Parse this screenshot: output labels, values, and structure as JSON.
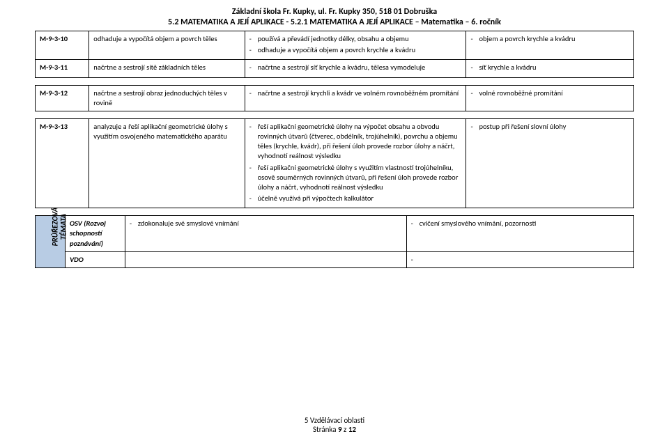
{
  "header": {
    "line1": "Základní škola Fr. Kupky, ul. Fr. Kupky 350, 518 01 Dobruška",
    "line2": "5.2 MATEMATIKA A JEJÍ APLIKACE - 5.2.1 MATEMATIKA A JEJÍ APLIKACE – Matematika – 6. ročník"
  },
  "tableA": {
    "rows": [
      {
        "code": "M-9-3-10",
        "col2": "odhaduje a vypočítá objem a povrch těles",
        "col3": [
          "používá a převádí jednotky délky, obsahu a objemu",
          "odhaduje a vypočítá objem a povrch krychle a kvádru"
        ],
        "col4": [
          "objem a povrch krychle a kvádru"
        ]
      },
      {
        "code": "M-9-3-11",
        "col2": "načrtne a sestrojí sítě základních těles",
        "col3": [
          "načrtne a sestrojí síť krychle a kvádru, tělesa vymodeluje"
        ],
        "col4": [
          "síť krychle a kvádru"
        ]
      }
    ],
    "cols": {
      "c1": "9%",
      "c2": "26%",
      "c3": "37%",
      "c4": "28%"
    }
  },
  "tableB": {
    "rows": [
      {
        "code": "M-9-3-12",
        "col2": "načrtne a sestrojí obraz jednoduchých těles v rovině",
        "col3": [
          "načrtne a sestrojí krychli a kvádr ve volném rovnoběžném promítání"
        ],
        "col4": [
          "volné rovnoběžné promítání"
        ]
      }
    ]
  },
  "tableC": {
    "rows": [
      {
        "code": "M-9-3-13",
        "col2": "analyzuje a řeší aplikační geometrické úlohy s využitím osvojeného matematického aparátu",
        "col3": [
          "řeší aplikační geometrické úlohy na výpočet obsahu a obvodu rovinných útvarů (čtverec, obdélník, trojúhelník), povrchu a objemu těles (krychle, kvádr), při řešení úloh provede rozbor úlohy a náčrt, vyhodnotí reálnost výsledku",
          "řeší aplikační geometrické úlohy s využitím vlastností trojúhelníku, osově souměrných rovinných útvarů, při řešení úloh provede rozbor úlohy a náčrt, vyhodnotí reálnost výsledku",
          "účelně využívá při výpočtech kalkulátor"
        ],
        "col4": [
          "postup při řešení slovní úlohy"
        ]
      }
    ]
  },
  "themes": {
    "sidebar": "PRŮŘEZOVÁ\nTÉMATA",
    "cols": {
      "side": "5%",
      "label": "10%",
      "body1": "47%",
      "body2": "38%"
    },
    "rows": [
      {
        "label": "OSV (Rozvoj schopností poznávání)",
        "body1": [
          "zdokonaluje své smyslové vnímání"
        ],
        "body2": [
          "cvičení smyslového vnímání, pozornosti"
        ]
      },
      {
        "label": "VDO",
        "body1": [],
        "body2_raw": "-"
      }
    ]
  },
  "footer": {
    "line1": "5 Vzdělávací oblasti",
    "line2_prefix": "Stránka ",
    "page": "9",
    "line2_mid": " z ",
    "total": "12"
  }
}
